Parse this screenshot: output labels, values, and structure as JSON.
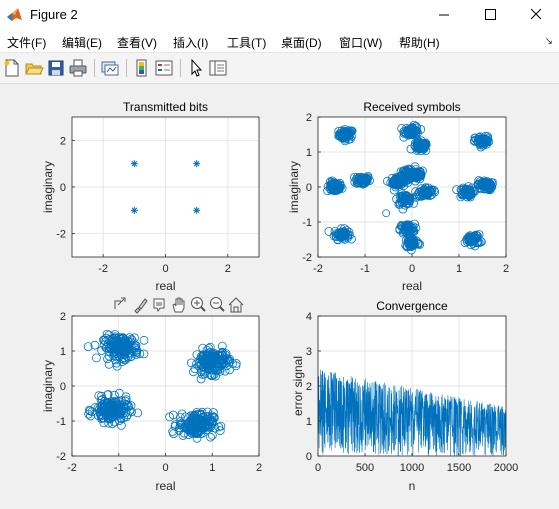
{
  "window": {
    "title": "Figure 2"
  },
  "menu": [
    "文件(F)",
    "编辑(E)",
    "查看(V)",
    "插入(I)",
    "工具(T)",
    "桌面(D)",
    "窗口(W)",
    "帮助(H)"
  ],
  "menu_overflow": "↘",
  "toolbar": [
    "new-figure-icon",
    "open-file-icon",
    "save-icon",
    "print-icon",
    "link-plot-icon",
    "colorbar-icon",
    "legend-icon",
    "pointer-icon",
    "property-inspector-icon"
  ],
  "axes_toolbar": [
    "export-icon",
    "brush-icon",
    "data-tips-icon",
    "pan-icon",
    "zoom-in-icon",
    "zoom-out-icon",
    "home-icon"
  ],
  "colors": {
    "series": "#0072bd",
    "grid": "#dcdcdc",
    "axis": "#262626"
  },
  "chart_data": [
    {
      "type": "scatter",
      "title": "Transmitted bits",
      "xlabel": "real",
      "ylabel": "imaginary",
      "xlim": [
        -3,
        3
      ],
      "ylim": [
        -3,
        3
      ],
      "xticks": [
        -2,
        0,
        2
      ],
      "yticks": [
        -2,
        0,
        2
      ],
      "marker": "*",
      "grid": true,
      "points": [
        [
          -1,
          1
        ],
        [
          1,
          1
        ],
        [
          -1,
          -1
        ],
        [
          1,
          -1
        ]
      ]
    },
    {
      "type": "scatter",
      "title": "Received symbols",
      "xlabel": "real",
      "ylabel": "imaginary",
      "xlim": [
        -2,
        2
      ],
      "ylim": [
        -2,
        2
      ],
      "xticks": [
        -2,
        -1,
        0,
        1,
        2
      ],
      "yticks": [
        -2,
        -1,
        0,
        1,
        2
      ],
      "marker": "o",
      "grid": true,
      "clusters": [
        [
          -1.4,
          1.5
        ],
        [
          -1.65,
          0
        ],
        [
          -1.05,
          0.2
        ],
        [
          -1.5,
          -1.35
        ],
        [
          -0.3,
          0.15
        ],
        [
          -0.1,
          0.35
        ],
        [
          0.1,
          0.35
        ],
        [
          0.18,
          1.15
        ],
        [
          0.0,
          1.6
        ],
        [
          -0.15,
          -0.35
        ],
        [
          -0.1,
          -1.2
        ],
        [
          0.0,
          -1.6
        ],
        [
          0.3,
          -0.15
        ],
        [
          1.15,
          -0.15
        ],
        [
          1.55,
          0.05
        ],
        [
          1.5,
          1.3
        ],
        [
          1.3,
          -1.5
        ]
      ],
      "outliers": [
        [
          -0.55,
          -0.75
        ]
      ]
    },
    {
      "type": "scatter",
      "title": "",
      "xlabel": "real",
      "ylabel": "imaginary",
      "xlim": [
        -2,
        2
      ],
      "ylim": [
        -2,
        2
      ],
      "xticks": [
        -2,
        -1,
        0,
        1,
        2
      ],
      "yticks": [
        -2,
        -1,
        0,
        1,
        2
      ],
      "marker": "o",
      "grid": true,
      "clusters": [
        [
          -0.95,
          1.1
        ],
        [
          1.0,
          0.7
        ],
        [
          -1.15,
          -0.7
        ],
        [
          0.65,
          -1.1
        ]
      ]
    },
    {
      "type": "line",
      "title": "Convergence",
      "xlabel": "n",
      "ylabel": "error signal",
      "xlim": [
        0,
        2000
      ],
      "ylim": [
        0,
        4
      ],
      "xticks": [
        0,
        500,
        1000,
        1500,
        2000
      ],
      "yticks": [
        0,
        1,
        2,
        3,
        4
      ],
      "grid": true,
      "n_samples": 2000,
      "envelope": {
        "start_peak": 2.5,
        "end_peak": 1.4,
        "mean": 0.95
      }
    }
  ]
}
